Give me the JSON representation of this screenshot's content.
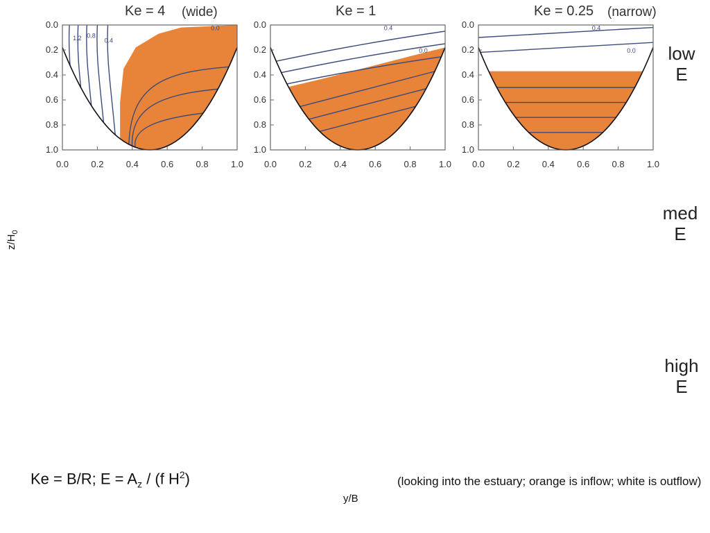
{
  "row_labels": [
    {
      "line1": "low",
      "line2": "E"
    },
    {
      "line1": "med",
      "line2": "E"
    },
    {
      "line1": "high",
      "line2": "E"
    }
  ],
  "axis": {
    "y_label_main": "z/H",
    "y_label_sub": "0",
    "x_label": "y/B"
  },
  "formula": {
    "ke": "Ke = B/R; E = A",
    "z_sub": "z",
    "mid": " / (f H",
    "sup": "2",
    "end": ")"
  },
  "caption": "(looking into the estuary; orange is inflow; white is outflow)",
  "colors": {
    "inflow": "#E8833A",
    "contour": "#3D4B7A",
    "frame": "#666666",
    "outline": "#111111"
  },
  "chart_data": [
    {
      "type": "contour",
      "title": "Ke = 4",
      "note": "(wide)",
      "xlim": [
        0,
        1
      ],
      "ylim": [
        0,
        1
      ],
      "y_inverted": true,
      "xticks": [
        "0.0",
        "0.2",
        "0.4",
        "0.6",
        "0.8",
        "1.0"
      ],
      "yticks": [
        "0.0",
        "0.2",
        "0.4",
        "0.6",
        "0.8",
        "1.0"
      ],
      "contour_labels": [
        "1.2",
        "0.8",
        "0.4",
        "0.0"
      ],
      "inflow_boundary": [
        [
          0.33,
          0.62
        ],
        [
          0.35,
          0.35
        ],
        [
          0.42,
          0.18
        ],
        [
          0.55,
          0.07
        ],
        [
          0.68,
          0.02
        ],
        [
          1.0,
          0.0
        ]
      ]
    },
    {
      "type": "contour",
      "title": "Ke = 1",
      "note": "",
      "xlim": [
        0,
        1
      ],
      "ylim": [
        0,
        1
      ],
      "y_inverted": true,
      "xticks": [
        "0.0",
        "0.2",
        "0.4",
        "0.6",
        "0.8",
        "1.0"
      ],
      "yticks": [
        "0.0",
        "0.2",
        "0.4",
        "0.6",
        "0.8",
        "1.0"
      ],
      "contour_labels": [
        "0.4",
        "0.0"
      ],
      "inflow_boundary": [
        [
          0.09,
          0.5
        ],
        [
          0.3,
          0.43
        ],
        [
          0.55,
          0.34
        ],
        [
          0.8,
          0.25
        ],
        [
          1.0,
          0.18
        ]
      ]
    },
    {
      "type": "contour",
      "title": "Ke = 0.25",
      "note": "(narrow)",
      "xlim": [
        0,
        1
      ],
      "ylim": [
        0,
        1
      ],
      "y_inverted": true,
      "xticks": [
        "0.0",
        "0.2",
        "0.4",
        "0.6",
        "0.8",
        "1.0"
      ],
      "yticks": [
        "0.0",
        "0.2",
        "0.4",
        "0.6",
        "0.8",
        "1.0"
      ],
      "contour_labels": [
        "0.4",
        "0.0"
      ],
      "inflow_boundary": [
        [
          0.05,
          0.37
        ],
        [
          0.5,
          0.37
        ],
        [
          0.95,
          0.37
        ]
      ]
    }
  ]
}
